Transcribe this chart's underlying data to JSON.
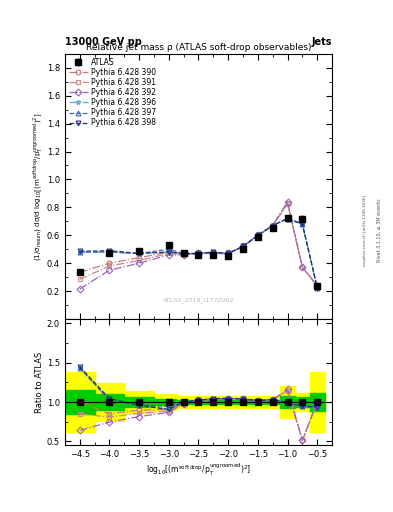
{
  "title_top": "13000 GeV pp",
  "title_right": "Jets",
  "plot_title": "Relative jet mass ρ (ATLAS soft-drop observables)",
  "watermark": "ATLAS_2019_I1772062",
  "right_label": "mcplots.cern.ch [arXiv:1306.3436]",
  "rivet_label": "Rivet 3.1.10, ≥ 3M events",
  "xlabel": "log$_{10}$[(m$^{\\mathrm{soft\\,drop}}$/p$_\\mathrm{T}^{\\mathrm{ungroomed}}$)$^2$]",
  "ylabel_main": "(1/σ$_{\\mathrm{resum}}$) dσ/d log$_{10}$[(m$^{\\mathrm{soft drop}}$/p$_\\mathrm{T}^{\\mathrm{ungroomed}}$)$^2$]",
  "ylabel_ratio": "Ratio to ATLAS",
  "xvalues": [
    -4.5,
    -4.0,
    -3.5,
    -3.0,
    -2.75,
    -2.5,
    -2.25,
    -2.0,
    -1.75,
    -1.5,
    -1.25,
    -1.0,
    -0.75,
    -0.5
  ],
  "xlim": [
    -4.75,
    -0.25
  ],
  "ylim_main": [
    0.0,
    1.9
  ],
  "ylim_ratio": [
    0.45,
    2.05
  ],
  "yticks_main": [
    0.2,
    0.4,
    0.6,
    0.8,
    1.0,
    1.2,
    1.4,
    1.6,
    1.8
  ],
  "yticks_ratio": [
    0.5,
    1.0,
    1.5,
    2.0
  ],
  "atlas_y": [
    0.335,
    0.47,
    0.49,
    0.53,
    0.47,
    0.46,
    0.46,
    0.45,
    0.5,
    0.59,
    0.65,
    0.725,
    0.72,
    0.24
  ],
  "atlas_yerr_stat": [
    0.02,
    0.015,
    0.012,
    0.012,
    0.01,
    0.01,
    0.01,
    0.01,
    0.01,
    0.012,
    0.015,
    0.02,
    0.025,
    0.02
  ],
  "atlas_color": "#000000",
  "error_band_green": "#00cc00",
  "error_band_yellow": "#ffff00",
  "green_lo": [
    0.85,
    0.9,
    0.94,
    0.96,
    0.97,
    0.97,
    0.97,
    0.97,
    0.97,
    0.97,
    0.97,
    0.92,
    0.94,
    0.88
  ],
  "green_hi": [
    1.15,
    1.1,
    1.06,
    1.04,
    1.03,
    1.03,
    1.03,
    1.03,
    1.03,
    1.03,
    1.03,
    1.08,
    1.06,
    1.12
  ],
  "yellow_lo": [
    0.62,
    0.76,
    0.86,
    0.9,
    0.93,
    0.93,
    0.93,
    0.93,
    0.93,
    0.93,
    0.93,
    0.8,
    0.88,
    0.62
  ],
  "yellow_hi": [
    1.38,
    1.24,
    1.14,
    1.1,
    1.07,
    1.07,
    1.07,
    1.07,
    1.07,
    1.07,
    1.07,
    1.2,
    1.12,
    1.38
  ],
  "mc390_y": [
    0.335,
    0.4,
    0.44,
    0.48,
    0.46,
    0.47,
    0.47,
    0.47,
    0.52,
    0.6,
    0.67,
    0.825,
    0.37,
    0.24
  ],
  "mc391_y": [
    0.285,
    0.38,
    0.42,
    0.47,
    0.46,
    0.47,
    0.47,
    0.47,
    0.52,
    0.6,
    0.67,
    0.83,
    0.37,
    0.24
  ],
  "mc392_y": [
    0.215,
    0.35,
    0.4,
    0.46,
    0.46,
    0.47,
    0.47,
    0.47,
    0.52,
    0.6,
    0.67,
    0.84,
    0.37,
    0.24
  ],
  "mc396_y": [
    0.48,
    0.48,
    0.47,
    0.48,
    0.47,
    0.47,
    0.48,
    0.47,
    0.52,
    0.6,
    0.67,
    0.72,
    0.68,
    0.225
  ],
  "mc397_y": [
    0.48,
    0.48,
    0.47,
    0.5,
    0.47,
    0.47,
    0.48,
    0.47,
    0.52,
    0.6,
    0.67,
    0.72,
    0.68,
    0.225
  ],
  "mc398_y": [
    0.485,
    0.49,
    0.47,
    0.48,
    0.47,
    0.47,
    0.48,
    0.47,
    0.52,
    0.6,
    0.67,
    0.72,
    0.68,
    0.225
  ],
  "mc390_ratio": [
    1.0,
    0.85,
    0.898,
    0.906,
    0.978,
    1.022,
    1.022,
    1.044,
    1.04,
    1.017,
    1.031,
    1.138,
    0.514,
    1.0
  ],
  "mc391_ratio": [
    0.85,
    0.809,
    0.857,
    0.887,
    0.978,
    1.022,
    1.022,
    1.044,
    1.04,
    1.017,
    1.031,
    1.145,
    0.514,
    1.0
  ],
  "mc392_ratio": [
    0.641,
    0.745,
    0.816,
    0.868,
    0.978,
    1.022,
    1.022,
    1.044,
    1.04,
    1.017,
    1.031,
    1.159,
    0.514,
    1.0
  ],
  "mc396_ratio": [
    1.433,
    1.021,
    0.959,
    0.906,
    1.0,
    1.022,
    1.044,
    1.044,
    1.04,
    1.017,
    1.031,
    0.993,
    0.944,
    0.938
  ],
  "mc397_ratio": [
    1.433,
    1.021,
    0.959,
    0.943,
    1.0,
    1.022,
    1.044,
    1.044,
    1.04,
    1.017,
    1.031,
    0.993,
    0.944,
    0.938
  ],
  "mc398_ratio": [
    1.448,
    1.043,
    0.959,
    0.906,
    1.0,
    1.022,
    1.044,
    1.044,
    1.04,
    1.017,
    1.031,
    0.993,
    0.944,
    0.938
  ],
  "color390": "#cc7777",
  "color391": "#cc8888",
  "color392": "#9966bb",
  "color396": "#55aacc",
  "color397": "#4466bb",
  "color398": "#223377"
}
